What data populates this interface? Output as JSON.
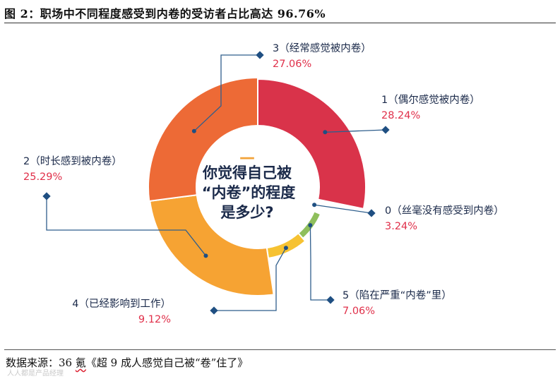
{
  "figure": {
    "title": "图 2：职场中不同程度感受到内卷的受访者占比高达 96.76%",
    "source_prefix": "数据来源：36 ",
    "source_brand": "氪",
    "source_suffix": "《超 9 成人感觉自己被“卷”住了》",
    "watermark": "人人都是产品经理"
  },
  "chart_data": {
    "type": "pie",
    "variant": "donut with variable outer radius (rose)",
    "title": "你觉得自己被“内卷”的程度是多少?",
    "center_lines": [
      "你觉得自己被",
      "“内卷”的程度",
      "是多少?"
    ],
    "center_dash": "—",
    "slices": [
      {
        "name": "1（偶尔感觉被内卷）",
        "value": 28.24,
        "value_label": "28.24%",
        "color": "#d9334a"
      },
      {
        "name": "0（丝毫没有感受到内卷）",
        "value": 3.24,
        "value_label": "3.24%",
        "color": "#3aa79a"
      },
      {
        "name": "5（陷在严重“内卷”里）",
        "value": 7.06,
        "value_label": "7.06%",
        "color": "#8fbf5c"
      },
      {
        "name": "4（已经影响到工作）",
        "value": 9.12,
        "value_label": "9.12%",
        "color": "#f6c232"
      },
      {
        "name": "2（时长感到被内卷）",
        "value": 25.29,
        "value_label": "25.29%",
        "color": "#f6a333"
      },
      {
        "name": "3（经常感觉被内卷）",
        "value": 27.06,
        "value_label": "27.06%",
        "color": "#ed6a36"
      }
    ]
  }
}
